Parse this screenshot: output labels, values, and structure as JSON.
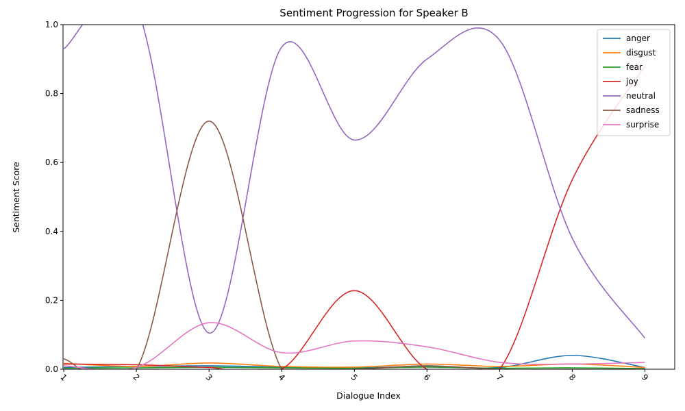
{
  "chart_data": {
    "type": "line",
    "title": "Sentiment Progression for Speaker B",
    "xlabel": "Dialogue Index",
    "ylabel": "Sentiment Score",
    "x": [
      1,
      2,
      3,
      4,
      5,
      6,
      7,
      8,
      9
    ],
    "xlim": [
      0.99,
      9.41
    ],
    "ylim": [
      0,
      1
    ],
    "xticks": [
      "1",
      "2",
      "3",
      "4",
      "5",
      "6",
      "7",
      "8",
      "9"
    ],
    "yticks": [
      "0.0",
      "0.2",
      "0.4",
      "0.6",
      "0.8",
      "1.0"
    ],
    "xtick_rotation_deg": 45,
    "grid": false,
    "legend_position": "top-right",
    "series": [
      {
        "name": "anger",
        "color": "#1f77b4",
        "values": [
          0.005,
          0.008,
          0.01,
          0.006,
          0.004,
          0.008,
          0.005,
          0.04,
          0.005
        ]
      },
      {
        "name": "disgust",
        "color": "#ff7f0e",
        "values": [
          0.017,
          0.008,
          0.018,
          0.008,
          0.006,
          0.015,
          0.008,
          0.015,
          0.005
        ]
      },
      {
        "name": "fear",
        "color": "#2ca02c",
        "values": [
          0.003,
          0.004,
          0.006,
          0.004,
          0.003,
          0.006,
          0.003,
          0.004,
          0.002
        ]
      },
      {
        "name": "joy",
        "color": "#d62728",
        "values": [
          0.015,
          0.013,
          0.005,
          0.0,
          0.228,
          0.0,
          0.0,
          0.55,
          0.88
        ]
      },
      {
        "name": "neutral",
        "color": "#9467bd",
        "values": [
          0.93,
          1.05,
          0.105,
          0.935,
          0.665,
          0.9,
          0.955,
          0.38,
          0.09
        ]
      },
      {
        "name": "sadness",
        "color": "#8c564b",
        "values": [
          0.03,
          0.0,
          0.72,
          0.0,
          0.0,
          0.01,
          0.0,
          0.0,
          0.0
        ]
      },
      {
        "name": "surprise",
        "color": "#e377c2",
        "values": [
          0.01,
          0.005,
          0.135,
          0.048,
          0.082,
          0.065,
          0.02,
          0.015,
          0.02
        ]
      }
    ]
  }
}
